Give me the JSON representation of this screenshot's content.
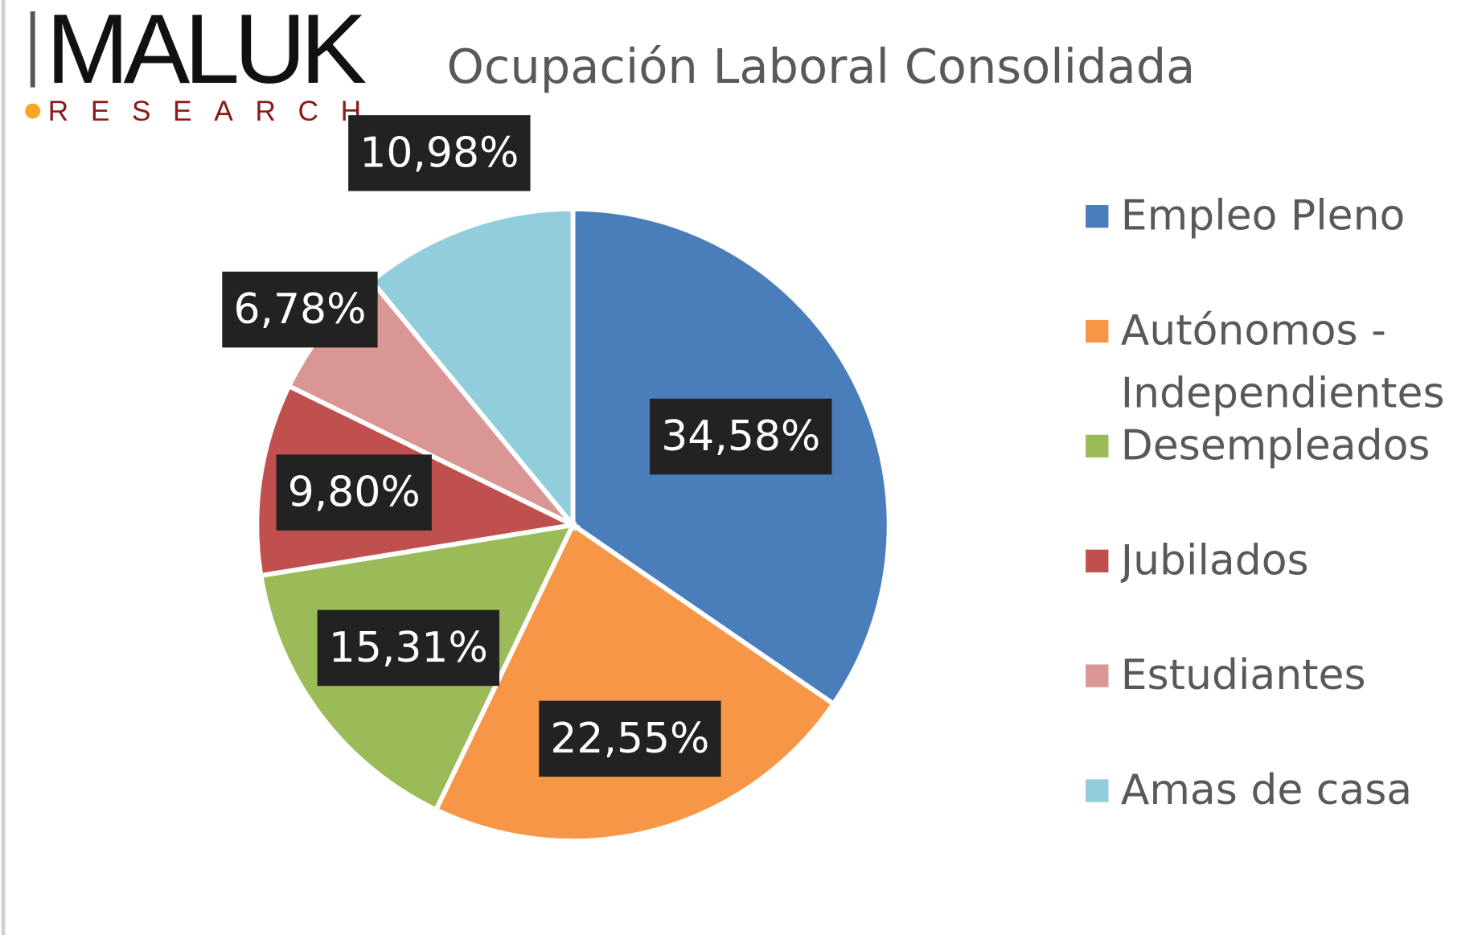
{
  "logo": {
    "name": "MALUK",
    "tagline": "RESEARCH"
  },
  "chart_data": {
    "type": "pie",
    "title": "Ocupación Laboral Consolidada",
    "categories": [
      "Empleo Pleno",
      "Autónomos - Independientes",
      "Desempleados",
      "Jubilados",
      "Estudiantes",
      "Amas de casa"
    ],
    "values": [
      34.58,
      22.55,
      15.31,
      9.8,
      6.78,
      10.98
    ],
    "value_labels": [
      "34,58%",
      "22,55%",
      "15,31%",
      "9,80%",
      "6,78%",
      "10,98%"
    ],
    "colors": [
      "#4a7ebb",
      "#f79646",
      "#9bbb59",
      "#c0504d",
      "#d99694",
      "#92cddc"
    ],
    "legend": "right"
  }
}
